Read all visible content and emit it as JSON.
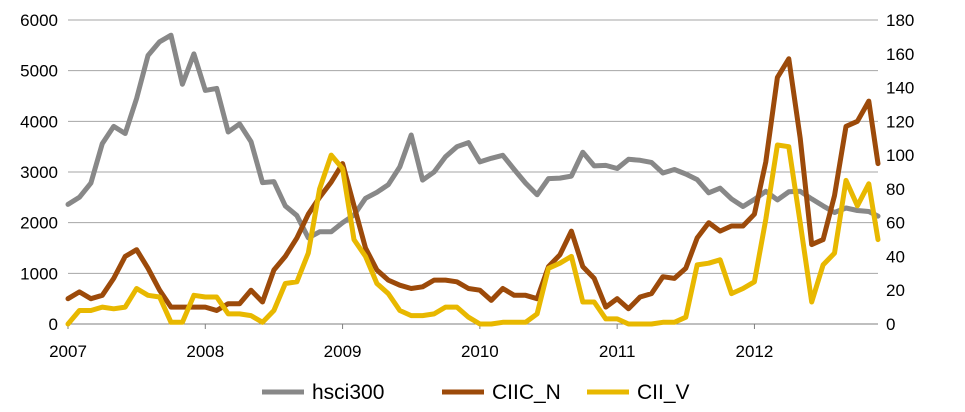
{
  "chart_data": {
    "type": "line",
    "title": "",
    "xlabel": "",
    "ylabel_left": "",
    "ylabel_right": "",
    "x_ticks": [
      "2007",
      "2008",
      "2009",
      "2010",
      "2011",
      "2012"
    ],
    "x_range": [
      2007,
      2012.9
    ],
    "y_left_ticks": [
      "0",
      "1000",
      "2000",
      "3000",
      "4000",
      "5000",
      "6000"
    ],
    "y_left_range": [
      0,
      6000
    ],
    "y_right_ticks": [
      "0",
      "20",
      "40",
      "60",
      "80",
      "100",
      "120",
      "140",
      "160",
      "180"
    ],
    "y_right_range": [
      0,
      180
    ],
    "grid": "horizontal",
    "legend_position": "bottom",
    "series": [
      {
        "name": "hsci300",
        "axis": "left",
        "color": "#888888",
        "x": [
          2007.0,
          2007.083,
          2007.167,
          2007.25,
          2007.333,
          2007.417,
          2007.5,
          2007.583,
          2007.667,
          2007.75,
          2007.833,
          2007.917,
          2008.0,
          2008.083,
          2008.167,
          2008.25,
          2008.333,
          2008.417,
          2008.5,
          2008.583,
          2008.667,
          2008.75,
          2008.833,
          2008.917,
          2009.0,
          2009.083,
          2009.167,
          2009.25,
          2009.333,
          2009.417,
          2009.5,
          2009.583,
          2009.667,
          2009.75,
          2009.833,
          2009.917,
          2010.0,
          2010.083,
          2010.167,
          2010.25,
          2010.333,
          2010.417,
          2010.5,
          2010.583,
          2010.667,
          2010.75,
          2010.833,
          2010.917,
          2011.0,
          2011.083,
          2011.167,
          2011.25,
          2011.333,
          2011.417,
          2011.5,
          2011.583,
          2011.667,
          2011.75,
          2011.833,
          2011.917,
          2012.0,
          2012.083,
          2012.167,
          2012.25,
          2012.333,
          2012.417,
          2012.5,
          2012.583,
          2012.667,
          2012.75,
          2012.833,
          2012.9
        ],
        "values": [
          2360,
          2500,
          2780,
          3560,
          3900,
          3760,
          4450,
          5300,
          5570,
          5700,
          4730,
          5330,
          4610,
          4650,
          3790,
          3950,
          3600,
          2790,
          2810,
          2330,
          2140,
          1700,
          1820,
          1820,
          2000,
          2150,
          2480,
          2600,
          2750,
          3100,
          3730,
          2840,
          3000,
          3300,
          3500,
          3580,
          3200,
          3270,
          3330,
          3050,
          2780,
          2550,
          2870,
          2880,
          2920,
          3390,
          3120,
          3130,
          3070,
          3250,
          3230,
          3190,
          2980,
          3050,
          2960,
          2850,
          2590,
          2680,
          2470,
          2320,
          2460,
          2620,
          2450,
          2610,
          2620,
          2470,
          2330,
          2200,
          2290,
          2240,
          2220,
          2130
        ]
      },
      {
        "name": "CIIC_N",
        "axis": "right",
        "color": "#9C4A0A",
        "x": [
          2007.0,
          2007.083,
          2007.167,
          2007.25,
          2007.333,
          2007.417,
          2007.5,
          2007.583,
          2007.667,
          2007.75,
          2007.833,
          2007.917,
          2008.0,
          2008.083,
          2008.167,
          2008.25,
          2008.333,
          2008.417,
          2008.5,
          2008.583,
          2008.667,
          2008.75,
          2008.833,
          2008.917,
          2009.0,
          2009.083,
          2009.167,
          2009.25,
          2009.333,
          2009.417,
          2009.5,
          2009.583,
          2009.667,
          2009.75,
          2009.833,
          2009.917,
          2010.0,
          2010.083,
          2010.167,
          2010.25,
          2010.333,
          2010.417,
          2010.5,
          2010.583,
          2010.667,
          2010.75,
          2010.833,
          2010.917,
          2011.0,
          2011.083,
          2011.167,
          2011.25,
          2011.333,
          2011.417,
          2011.5,
          2011.583,
          2011.667,
          2011.75,
          2011.833,
          2011.917,
          2012.0,
          2012.083,
          2012.167,
          2012.25,
          2012.333,
          2012.417,
          2012.5,
          2012.583,
          2012.667,
          2012.75,
          2012.833,
          2012.9
        ],
        "values": [
          15,
          19,
          15,
          17,
          27,
          40,
          44,
          33,
          20,
          10,
          10,
          10,
          10,
          8,
          12,
          12,
          20,
          13,
          32,
          40,
          51,
          65,
          75,
          84,
          95,
          70,
          45,
          32,
          26,
          23,
          21,
          22,
          26,
          26,
          25,
          21,
          20,
          14,
          21,
          17,
          17,
          15,
          34,
          41,
          55,
          34,
          27,
          10,
          15,
          9,
          16,
          18,
          28,
          27,
          33,
          51,
          60,
          55,
          58,
          58,
          65,
          96,
          146,
          157,
          110,
          47,
          50,
          76,
          117,
          120,
          132,
          95
        ]
      },
      {
        "name": "CII_V",
        "axis": "right",
        "color": "#E8B800",
        "x": [
          2007.0,
          2007.083,
          2007.167,
          2007.25,
          2007.333,
          2007.417,
          2007.5,
          2007.583,
          2007.667,
          2007.75,
          2007.833,
          2007.917,
          2008.0,
          2008.083,
          2008.167,
          2008.25,
          2008.333,
          2008.417,
          2008.5,
          2008.583,
          2008.667,
          2008.75,
          2008.833,
          2008.917,
          2009.0,
          2009.083,
          2009.167,
          2009.25,
          2009.333,
          2009.417,
          2009.5,
          2009.583,
          2009.667,
          2009.75,
          2009.833,
          2009.917,
          2010.0,
          2010.083,
          2010.167,
          2010.25,
          2010.333,
          2010.417,
          2010.5,
          2010.583,
          2010.667,
          2010.75,
          2010.833,
          2010.917,
          2011.0,
          2011.083,
          2011.167,
          2011.25,
          2011.333,
          2011.417,
          2011.5,
          2011.583,
          2011.667,
          2011.75,
          2011.833,
          2011.917,
          2012.0,
          2012.083,
          2012.167,
          2012.25,
          2012.333,
          2012.417,
          2012.5,
          2012.583,
          2012.667,
          2012.75,
          2012.833,
          2012.9
        ],
        "values": [
          0,
          8,
          8,
          10,
          9,
          10,
          21,
          17,
          16,
          1,
          1,
          17,
          16,
          16,
          6,
          6,
          5,
          1,
          8,
          24,
          25,
          42,
          80,
          100,
          92,
          50,
          40,
          24,
          18,
          8,
          5,
          5,
          6,
          10,
          10,
          4,
          0,
          0,
          1,
          1,
          1,
          6,
          33,
          36,
          40,
          13,
          13,
          3,
          3,
          0,
          0,
          0,
          1,
          1,
          4,
          35,
          36,
          38,
          18,
          21,
          25,
          62,
          106,
          105,
          60,
          13,
          35,
          42,
          85,
          70,
          83,
          50
        ]
      }
    ]
  }
}
